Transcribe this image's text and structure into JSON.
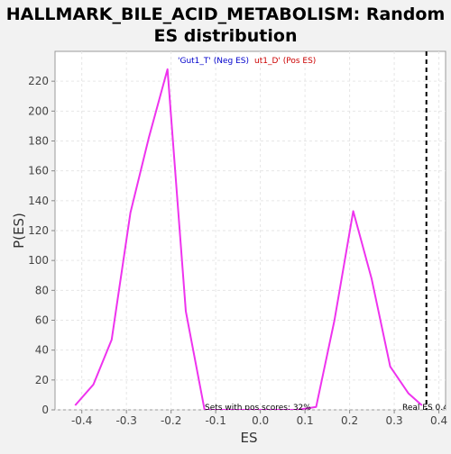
{
  "chart_data": {
    "type": "line",
    "title_line1": "HALLMARK_BILE_ACID_METABOLISM: Random",
    "title_line2": "ES distribution",
    "xlabel": "ES",
    "ylabel": "P(ES)",
    "xlim": [
      -0.46,
      0.415
    ],
    "ylim": [
      0,
      240
    ],
    "x_ticks": [
      -0.4,
      -0.3,
      -0.2,
      -0.1,
      0.0,
      0.1,
      0.2,
      0.3,
      0.4
    ],
    "x_tick_labels": [
      "-0.4",
      "-0.3",
      "-0.2",
      "-0.1",
      "0.0",
      "0.1",
      "0.2",
      "0.3",
      "0.4"
    ],
    "y_ticks": [
      0,
      20,
      40,
      60,
      80,
      100,
      120,
      140,
      160,
      180,
      200,
      220
    ],
    "y_tick_labels": [
      "0",
      "20",
      "40",
      "60",
      "80",
      "100",
      "120",
      "140",
      "160",
      "180",
      "200",
      "220"
    ],
    "grid": true,
    "series": [
      {
        "color": "#ee33ee",
        "x": [
          -0.415,
          -0.374,
          -0.333,
          -0.291,
          -0.25,
          -0.208,
          -0.167,
          -0.125,
          -0.084,
          -0.042,
          0.0,
          0.042,
          0.083,
          0.125,
          0.166,
          0.208,
          0.249,
          0.291,
          0.332,
          0.362
        ],
        "y": [
          3,
          17,
          47,
          132,
          182,
          228,
          66,
          0,
          0,
          0,
          0,
          0,
          0,
          2,
          60,
          133,
          88,
          29,
          11,
          3
        ]
      }
    ],
    "real_es_x": 0.372,
    "legend": {
      "neg_label": "'Gut1_T' (Neg ES)",
      "pos_label": "ut1_D' (Pos ES)",
      "neg_color": "#0000cc",
      "pos_color": "#cc0000"
    },
    "annotations": {
      "pos_scores": "Sets with pos scores: 32%",
      "real_es": "Real ES 0.4"
    }
  }
}
